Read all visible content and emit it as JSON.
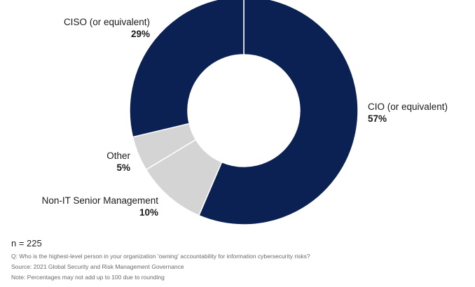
{
  "chart_data": {
    "type": "pie",
    "slices": [
      {
        "label": "CIO (or equivalent)",
        "value": 57,
        "value_label": "57%",
        "color": "#0b2153"
      },
      {
        "label": "Non-IT Senior Management",
        "value": 10,
        "value_label": "10%",
        "color": "#d4d4d4"
      },
      {
        "label": "Other",
        "value": 5,
        "value_label": "5%",
        "color": "#d4d4d4"
      },
      {
        "label": "CISO (or equivalent)",
        "value": 29,
        "value_label": "29%",
        "color": "#0b2153"
      }
    ],
    "start": "12 o'clock, clockwise",
    "donut": true,
    "separator_color": "#ffffff"
  },
  "footer": {
    "n": "n = 225",
    "question": "Q: Who is the highest-level person in your organization 'owning' accountability for information cybersecurity risks?",
    "source": "Source: 2021 Global Security and Risk Management Governance",
    "note": "Note: Percentages may not add up to 100 due to rounding"
  }
}
